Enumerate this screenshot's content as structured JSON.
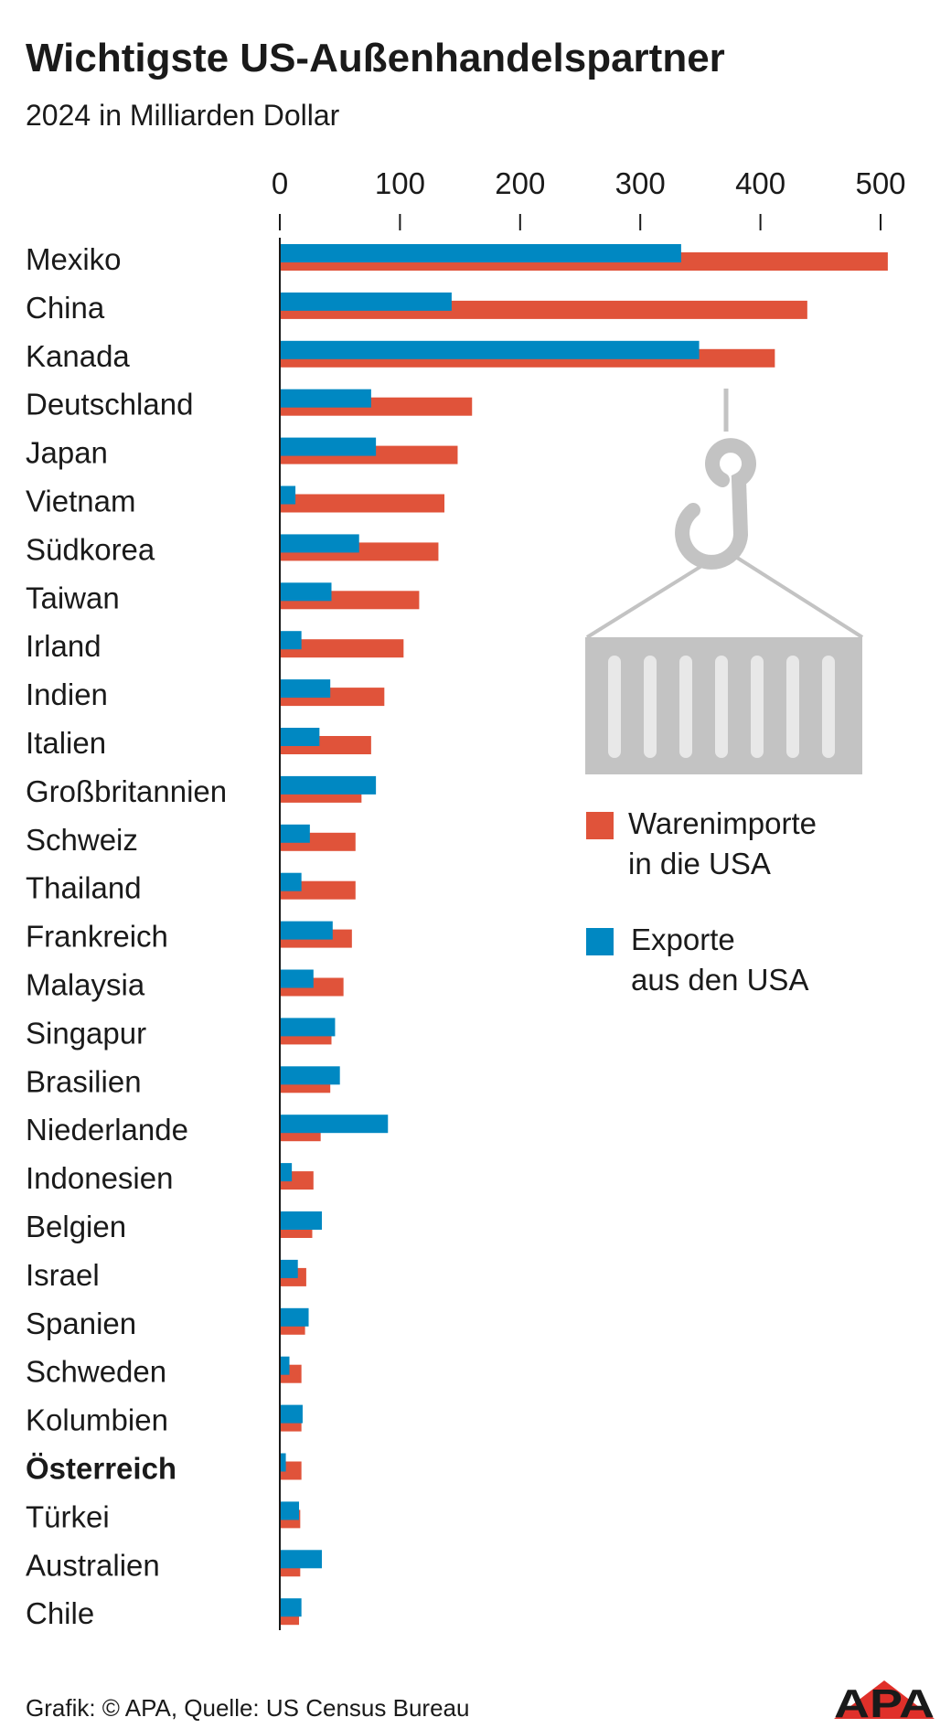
{
  "colors": {
    "imports": "#e0533a",
    "exports": "#0088c2",
    "illustration": "#c3c3c3",
    "text": "#1a1a1a",
    "logo_accent": "#e0302a"
  },
  "footer": {
    "credit": "Grafik: © APA, Quelle: US Census Bureau",
    "logo": "APA"
  },
  "illustration": {
    "icon": "shipping-container-crane-hook-icon"
  },
  "chart_data": {
    "type": "bar",
    "orientation": "horizontal",
    "title": "Wichtigste US-Außenhandelspartner",
    "subtitle": "2024 in Milliarden Dollar",
    "xlim": [
      0,
      500
    ],
    "xticks": [
      0,
      100,
      200,
      300,
      400,
      500
    ],
    "x_axis_position": "top",
    "grid": false,
    "legend_position": "right-middle",
    "highlight_category": "Österreich",
    "categories": [
      "Mexiko",
      "China",
      "Kanada",
      "Deutschland",
      "Japan",
      "Vietnam",
      "Südkorea",
      "Taiwan",
      "Irland",
      "Indien",
      "Italien",
      "Großbritannien",
      "Schweiz",
      "Thailand",
      "Frankreich",
      "Malaysia",
      "Singapur",
      "Brasilien",
      "Niederlande",
      "Indonesien",
      "Belgien",
      "Israel",
      "Spanien",
      "Schweden",
      "Kolumbien",
      "Österreich",
      "Türkei",
      "Australien",
      "Chile"
    ],
    "series": [
      {
        "name": "Warenimporte in die USA",
        "legend_lines": [
          "Warenimporte",
          "in die USA"
        ],
        "color": "#e0533a",
        "values": [
          506,
          439,
          412,
          160,
          148,
          137,
          132,
          116,
          103,
          87,
          76,
          68,
          63,
          63,
          60,
          53,
          43,
          42,
          34,
          28,
          27,
          22,
          21,
          18,
          18,
          18,
          17,
          17,
          16
        ]
      },
      {
        "name": "Exporte aus den USA",
        "legend_lines": [
          "Exporte",
          "aus den USA"
        ],
        "color": "#0088c2",
        "values": [
          334,
          143,
          349,
          76,
          80,
          13,
          66,
          43,
          18,
          42,
          33,
          80,
          25,
          18,
          44,
          28,
          46,
          50,
          90,
          10,
          35,
          15,
          24,
          8,
          19,
          5,
          16,
          35,
          18
        ]
      }
    ]
  }
}
